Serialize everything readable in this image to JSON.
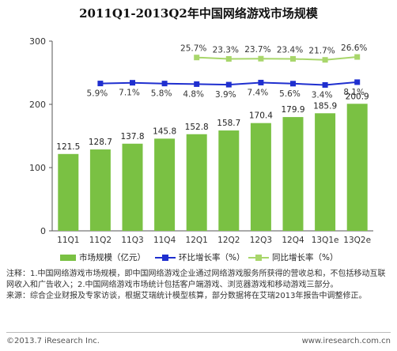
{
  "chart_data": {
    "type": "bar",
    "title": "2011Q1-2013Q2年中国网络游戏市场规模",
    "categories": [
      "11Q1",
      "11Q2",
      "11Q3",
      "11Q4",
      "12Q1",
      "12Q2",
      "12Q3",
      "12Q4",
      "13Q1e",
      "13Q2e"
    ],
    "ylim": [
      0,
      300
    ],
    "yticks": [
      0,
      100,
      200,
      300
    ],
    "grid": false,
    "legend_position": "bottom",
    "series": [
      {
        "name": "市场规模（亿元）",
        "type": "bar",
        "color": "#7ac143",
        "values": [
          121.5,
          128.7,
          137.8,
          145.8,
          152.8,
          158.7,
          170.4,
          179.9,
          185.9,
          200.9
        ],
        "labels": [
          "121.5",
          "128.7",
          "137.8",
          "145.8",
          "152.8",
          "158.7",
          "170.4",
          "179.9",
          "185.9",
          "200.9"
        ]
      },
      {
        "name": "环比增长率（%）",
        "type": "line",
        "color": "#1f2fcf",
        "values": [
          null,
          5.9,
          7.1,
          5.8,
          4.8,
          3.9,
          7.4,
          5.6,
          3.4,
          8.1
        ],
        "labels": [
          null,
          "5.9%",
          "7.1%",
          "5.8%",
          "4.8%",
          "3.9%",
          "7.4%",
          "5.6%",
          "3.4%",
          "8.1%"
        ]
      },
      {
        "name": "同比增长率（%）",
        "type": "line",
        "color": "#a8d66b",
        "values": [
          null,
          null,
          null,
          null,
          25.7,
          23.3,
          23.7,
          23.4,
          21.7,
          26.6
        ],
        "labels": [
          null,
          null,
          null,
          null,
          "25.7%",
          "23.3%",
          "23.7%",
          "23.4%",
          "21.7%",
          "26.6%"
        ]
      }
    ]
  },
  "legend": {
    "bar": "市场规模（亿元）",
    "mom": "环比增长率（%）",
    "yoy": "同比增长率（%）"
  },
  "notes": {
    "line1": "注释：1.中国网络游戏市场规模，即中国网络游戏企业通过网络游戏服务所获得的营收总和，不包括移动互联网收入和广告收入；2.中国网络游戏市场统计包括客户端游戏、浏览器游戏和移动游戏三部分。",
    "line2": "来源：综合企业财报及专家访谈，根据艾瑞统计模型核算，部分数据将在艾瑞2013年报告中调整修正。"
  },
  "footer": {
    "copyright": "©2013.7 iResearch Inc.",
    "website": "www.iresearch.com.cn"
  }
}
